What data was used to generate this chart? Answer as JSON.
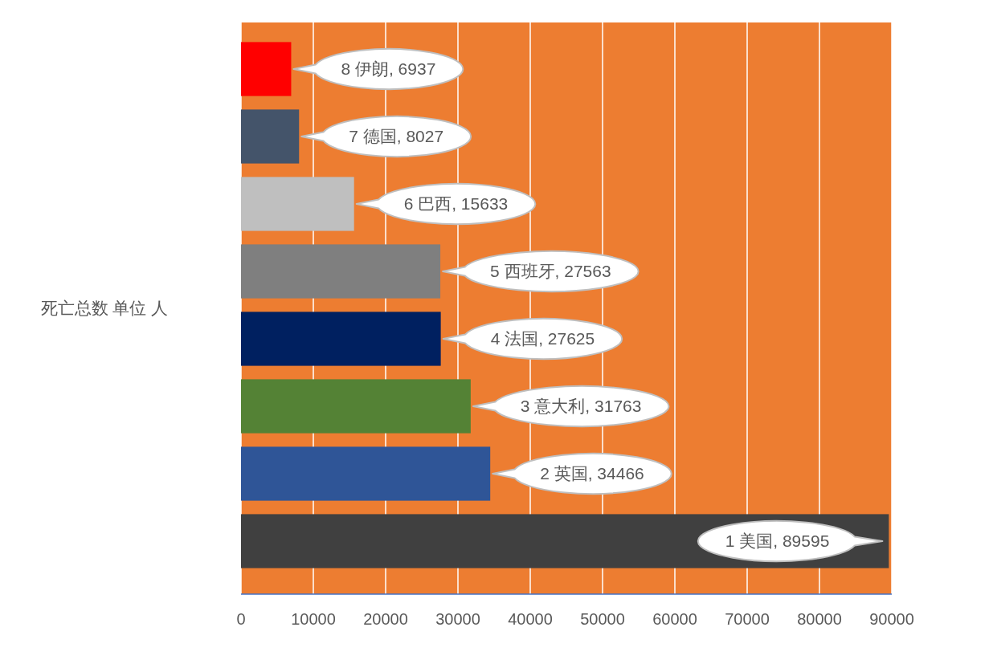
{
  "chart_data": {
    "type": "bar",
    "orientation": "horizontal",
    "ylabel": "死亡总数 单位 人",
    "categories": [
      null,
      null,
      null,
      null,
      null,
      null,
      null,
      null
    ],
    "values": [
      6937,
      8027,
      15633,
      27563,
      27625,
      31763,
      34466,
      89595
    ],
    "colors": [
      "#ff0000",
      "#44546a",
      "#bfbfbf",
      "#7f7f7f",
      "#002060",
      "#548235",
      "#2f5597",
      "#404040"
    ],
    "value_labels": [
      "8 伊朗, 6937",
      "7 德国, 8027",
      "6 巴西, 15633",
      "5 西班牙, 27563",
      "4 法国, 27625",
      "3 意大利, 31763",
      "2 英国, 34466",
      "1 美国, 89595"
    ],
    "xlim": [
      0,
      90000
    ],
    "xticks": [
      0,
      10000,
      20000,
      30000,
      40000,
      50000,
      60000,
      70000,
      80000,
      90000
    ],
    "grid": "x",
    "tick_labels": "x"
  }
}
